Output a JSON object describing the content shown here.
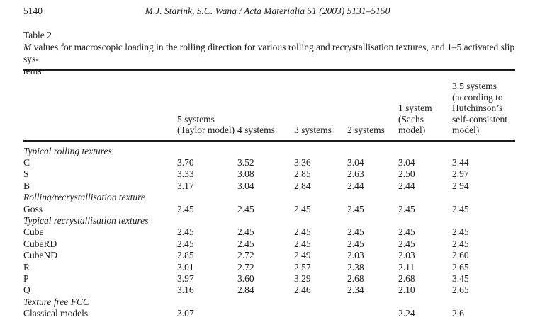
{
  "page_header": {
    "page_number": "5140",
    "running_title": "M.J. Starink, S.C. Wang / Acta Materialia 51 (2003) 5131–5150"
  },
  "table_caption": {
    "label": "Table 2",
    "lead_italic": "M",
    "line1_rest": " values for macroscopic loading in the rolling direction for various rolling and recrystallisation textures, and 1–5 activated slip sys-",
    "line2": "tems"
  },
  "table": {
    "columns": [
      {
        "name": "row-label-column",
        "lines": []
      },
      {
        "name": "col-5-systems",
        "lines": [
          "5 systems",
          "(Taylor model)"
        ]
      },
      {
        "name": "col-4-systems",
        "lines": [
          "4 systems"
        ]
      },
      {
        "name": "col-3-systems",
        "lines": [
          "3 systems"
        ]
      },
      {
        "name": "col-2-systems",
        "lines": [
          "2 systems"
        ]
      },
      {
        "name": "col-1-system",
        "lines": [
          "1 system",
          "(Sachs",
          "model)"
        ]
      },
      {
        "name": "col-3-5-systems",
        "lines": [
          "3.5 systems",
          "(according to",
          "Hutchinson’s",
          "self-consistent",
          "model)"
        ]
      }
    ],
    "rows": [
      {
        "type": "section",
        "label": "Typical rolling textures"
      },
      {
        "type": "data",
        "label": "C",
        "values": [
          "3.70",
          "3.52",
          "3.36",
          "3.04",
          "3.04",
          "3.44"
        ]
      },
      {
        "type": "data",
        "label": "S",
        "values": [
          "3.33",
          "3.08",
          "2.85",
          "2.63",
          "2.50",
          "2.97"
        ]
      },
      {
        "type": "data",
        "label": "B",
        "values": [
          "3.17",
          "3.04",
          "2.84",
          "2.44",
          "2.44",
          "2.94"
        ]
      },
      {
        "type": "section",
        "label": "Rolling/recrystallisation texture"
      },
      {
        "type": "data",
        "label": "Goss",
        "values": [
          "2.45",
          "2.45",
          "2.45",
          "2.45",
          "2.45",
          "2.45"
        ]
      },
      {
        "type": "section",
        "label": "Typical recrystallisation textures"
      },
      {
        "type": "data",
        "label": "Cube",
        "values": [
          "2.45",
          "2.45",
          "2.45",
          "2.45",
          "2.45",
          "2.45"
        ]
      },
      {
        "type": "data",
        "label": "CubeRD",
        "values": [
          "2.45",
          "2.45",
          "2.45",
          "2.45",
          "2.45",
          "2.45"
        ]
      },
      {
        "type": "data",
        "label": "CubeND",
        "values": [
          "2.85",
          "2.72",
          "2.49",
          "2.03",
          "2.03",
          "2.60"
        ]
      },
      {
        "type": "data",
        "label": "R",
        "values": [
          "3.01",
          "2.72",
          "2.57",
          "2.38",
          "2.11",
          "2.65"
        ]
      },
      {
        "type": "data",
        "label": "P",
        "values": [
          "3.97",
          "3.60",
          "3.29",
          "2.68",
          "2.68",
          "3.45"
        ]
      },
      {
        "type": "data",
        "label": "Q",
        "values": [
          "3.16",
          "2.84",
          "2.46",
          "2.34",
          "2.10",
          "2.65"
        ]
      },
      {
        "type": "section",
        "label": "Texture free FCC"
      },
      {
        "type": "data",
        "label": "Classical models",
        "values": [
          "3.07",
          "",
          "",
          "",
          "2.24",
          "2.6"
        ]
      }
    ]
  }
}
